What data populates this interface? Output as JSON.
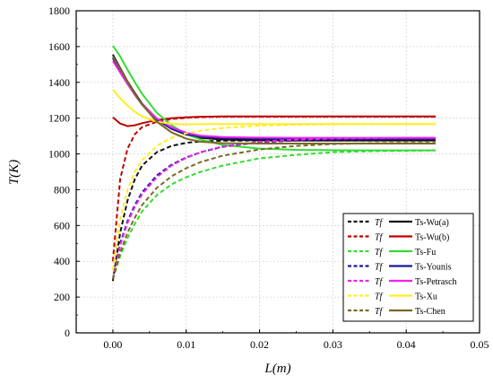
{
  "chart_data": {
    "type": "line",
    "xlabel": "L(m)",
    "ylabel": "T(K)",
    "xlim": [
      -0.005,
      0.05
    ],
    "ylim": [
      0,
      1800
    ],
    "xticks": [
      0.0,
      0.01,
      0.02,
      0.03,
      0.04,
      0.05
    ],
    "xtick_labels": [
      "0.00",
      "0.01",
      "0.02",
      "0.03",
      "0.04",
      "0.05"
    ],
    "yticks": [
      0,
      200,
      400,
      600,
      800,
      1000,
      1200,
      1400,
      1600,
      1800
    ],
    "ytick_labels": [
      "0",
      "200",
      "400",
      "600",
      "800",
      "1000",
      "1200",
      "1400",
      "1600",
      "1800"
    ],
    "grid": true,
    "legend_position": "bottom-right",
    "models": [
      {
        "name": "Wu(a)",
        "color": "#111111",
        "Tf_label": "Tf",
        "Ts_label": "Ts-Wu(a)",
        "Tf": {
          "x": [
            0,
            0.001,
            0.002,
            0.003,
            0.004,
            0.006,
            0.008,
            0.01,
            0.012,
            0.015,
            0.02,
            0.025,
            0.03,
            0.035,
            0.04,
            0.044
          ],
          "y": [
            290,
            560,
            740,
            860,
            935,
            1010,
            1045,
            1062,
            1070,
            1074,
            1075,
            1075,
            1075,
            1075,
            1075,
            1075
          ]
        },
        "Ts": {
          "x": [
            0,
            0.001,
            0.002,
            0.003,
            0.004,
            0.006,
            0.008,
            0.01,
            0.012,
            0.015,
            0.02,
            0.025,
            0.03,
            0.035,
            0.04,
            0.044
          ],
          "y": [
            1555,
            1480,
            1405,
            1340,
            1280,
            1195,
            1140,
            1108,
            1090,
            1080,
            1076,
            1075,
            1075,
            1075,
            1075,
            1075
          ]
        }
      },
      {
        "name": "Wu(b)",
        "color": "#c00000",
        "Tf_label": "Tf",
        "Ts_label": "Ts-Wu(b)",
        "Tf": {
          "x": [
            0,
            0.001,
            0.002,
            0.003,
            0.004,
            0.006,
            0.008,
            0.01,
            0.012,
            0.015,
            0.02,
            0.025,
            0.03,
            0.035,
            0.04,
            0.044
          ],
          "y": [
            400,
            860,
            1030,
            1110,
            1150,
            1180,
            1195,
            1202,
            1206,
            1208,
            1208,
            1208,
            1208,
            1208,
            1208,
            1208
          ]
        },
        "Ts": {
          "x": [
            0,
            0.001,
            0.002,
            0.003,
            0.004,
            0.006,
            0.008,
            0.01,
            0.012,
            0.015,
            0.02,
            0.025,
            0.03,
            0.035,
            0.04,
            0.044
          ],
          "y": [
            1205,
            1170,
            1155,
            1160,
            1172,
            1190,
            1200,
            1205,
            1208,
            1210,
            1210,
            1210,
            1210,
            1210,
            1210,
            1210
          ]
        }
      },
      {
        "name": "Fu",
        "color": "#33dd33",
        "Tf_label": "Tf",
        "Ts_label": "Ts-Fu",
        "Tf": {
          "x": [
            0,
            0.001,
            0.002,
            0.003,
            0.004,
            0.006,
            0.008,
            0.01,
            0.012,
            0.015,
            0.02,
            0.025,
            0.03,
            0.035,
            0.04,
            0.044
          ],
          "y": [
            300,
            430,
            530,
            610,
            680,
            770,
            830,
            870,
            900,
            935,
            975,
            995,
            1010,
            1015,
            1018,
            1020
          ]
        },
        "Ts": {
          "x": [
            0,
            0.001,
            0.002,
            0.003,
            0.004,
            0.006,
            0.008,
            0.01,
            0.012,
            0.015,
            0.02,
            0.025,
            0.03,
            0.035,
            0.04,
            0.044
          ],
          "y": [
            1605,
            1545,
            1470,
            1400,
            1335,
            1230,
            1160,
            1110,
            1080,
            1050,
            1030,
            1023,
            1021,
            1020,
            1020,
            1020
          ]
        }
      },
      {
        "name": "Younis",
        "color": "#1a1a99",
        "Tf_label": "Tf",
        "Ts_label": "Ts-Younis",
        "Tf": {
          "x": [
            0,
            0.001,
            0.002,
            0.003,
            0.004,
            0.006,
            0.008,
            0.01,
            0.012,
            0.015,
            0.02,
            0.025,
            0.03,
            0.035,
            0.04,
            0.044
          ],
          "y": [
            300,
            500,
            625,
            715,
            785,
            880,
            940,
            980,
            1010,
            1040,
            1065,
            1075,
            1080,
            1082,
            1083,
            1083
          ]
        },
        "Ts": {
          "x": [
            0,
            0.001,
            0.002,
            0.003,
            0.004,
            0.006,
            0.008,
            0.01,
            0.012,
            0.015,
            0.02,
            0.025,
            0.03,
            0.035,
            0.04,
            0.044
          ],
          "y": [
            1535,
            1465,
            1395,
            1330,
            1275,
            1190,
            1140,
            1110,
            1095,
            1088,
            1085,
            1084,
            1084,
            1084,
            1084,
            1084
          ]
        }
      },
      {
        "name": "Petrasch",
        "color": "#ee22ee",
        "Tf_label": "Tf",
        "Ts_label": "Ts-Petrasch",
        "Tf": {
          "x": [
            0,
            0.001,
            0.002,
            0.003,
            0.004,
            0.006,
            0.008,
            0.01,
            0.012,
            0.015,
            0.02,
            0.025,
            0.03,
            0.035,
            0.04,
            0.044
          ],
          "y": [
            300,
            490,
            615,
            705,
            775,
            870,
            935,
            978,
            1010,
            1042,
            1068,
            1080,
            1086,
            1088,
            1090,
            1090
          ]
        },
        "Ts": {
          "x": [
            0,
            0.001,
            0.002,
            0.003,
            0.004,
            0.006,
            0.008,
            0.01,
            0.012,
            0.015,
            0.02,
            0.025,
            0.03,
            0.035,
            0.04,
            0.044
          ],
          "y": [
            1520,
            1455,
            1390,
            1330,
            1278,
            1198,
            1148,
            1118,
            1102,
            1094,
            1091,
            1090,
            1090,
            1090,
            1090,
            1090
          ]
        }
      },
      {
        "name": "Xu",
        "color": "#ffee22",
        "Tf_label": "Tf",
        "Ts_label": "Ts-Xu",
        "Tf": {
          "x": [
            0,
            0.001,
            0.002,
            0.003,
            0.004,
            0.006,
            0.008,
            0.01,
            0.012,
            0.015,
            0.02,
            0.025,
            0.03,
            0.035,
            0.04,
            0.044
          ],
          "y": [
            350,
            640,
            800,
            900,
            965,
            1045,
            1090,
            1115,
            1130,
            1145,
            1158,
            1163,
            1165,
            1166,
            1166,
            1166
          ]
        },
        "Ts": {
          "x": [
            0,
            0.001,
            0.002,
            0.003,
            0.004,
            0.006,
            0.008,
            0.01,
            0.012,
            0.015,
            0.02,
            0.025,
            0.03,
            0.035,
            0.04,
            0.044
          ],
          "y": [
            1360,
            1310,
            1270,
            1235,
            1210,
            1180,
            1168,
            1165,
            1166,
            1167,
            1167,
            1167,
            1167,
            1167,
            1167,
            1167
          ]
        }
      },
      {
        "name": "Chen",
        "color": "#7a6a22",
        "Tf_label": "Tf",
        "Ts_label": "Ts-Chen",
        "Tf": {
          "x": [
            0,
            0.001,
            0.002,
            0.003,
            0.004,
            0.006,
            0.008,
            0.01,
            0.012,
            0.015,
            0.02,
            0.025,
            0.03,
            0.035,
            0.04,
            0.044
          ],
          "y": [
            300,
            450,
            560,
            645,
            715,
            810,
            875,
            920,
            955,
            990,
            1025,
            1045,
            1055,
            1060,
            1062,
            1062
          ]
        },
        "Ts": {
          "x": [
            0,
            0.001,
            0.002,
            0.003,
            0.004,
            0.006,
            0.008,
            0.01,
            0.012,
            0.015,
            0.02,
            0.025,
            0.03,
            0.035,
            0.04,
            0.044
          ],
          "y": [
            1545,
            1475,
            1402,
            1335,
            1275,
            1180,
            1120,
            1085,
            1068,
            1060,
            1058,
            1058,
            1058,
            1058,
            1058,
            1058
          ]
        }
      }
    ]
  }
}
